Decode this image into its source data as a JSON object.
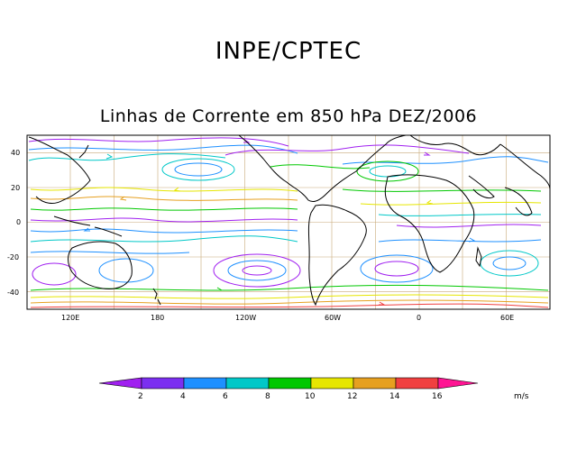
{
  "org_title": "INPE/CPTEC",
  "map_title": "Linhas de Corrente em 850 hPa DEZ/2006",
  "lat_ticks": [
    "40",
    "20",
    "0",
    "-20",
    "-40"
  ],
  "lon_ticks": [
    "120E",
    "180",
    "120W",
    "60W",
    "0",
    "60E"
  ],
  "colorbar": {
    "labels": [
      "2",
      "4",
      "6",
      "8",
      "10",
      "12",
      "14",
      "16"
    ],
    "unit": "m/s",
    "colors": [
      "#a020f0",
      "#7b2ff0",
      "#1e90ff",
      "#00c8c8",
      "#00c800",
      "#e6e600",
      "#e6a020",
      "#f04040",
      "#ff1493"
    ]
  },
  "colors": {
    "coast": "#000000",
    "grid": "#c8a878"
  }
}
